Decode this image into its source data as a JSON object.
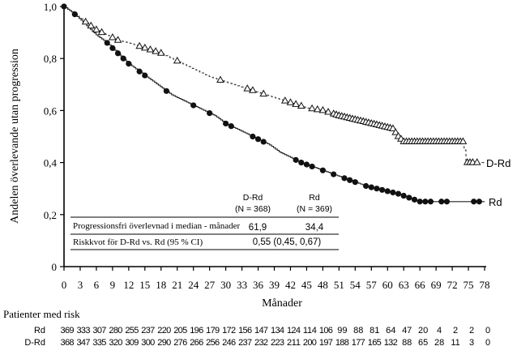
{
  "chart_data": {
    "type": "line",
    "subtype": "kaplan-meier",
    "ylabel": "Andelen överlevande utan progression",
    "xlabel": "Månader",
    "xlim": [
      0,
      78
    ],
    "ylim": [
      0,
      1.0
    ],
    "x_ticks": [
      0,
      3,
      6,
      9,
      12,
      15,
      18,
      21,
      24,
      27,
      30,
      33,
      36,
      39,
      42,
      45,
      48,
      51,
      54,
      57,
      60,
      63,
      66,
      69,
      72,
      75,
      78
    ],
    "y_ticks": [
      {
        "v": 0,
        "label": "0"
      },
      {
        "v": 0.2,
        "label": "0,2"
      },
      {
        "v": 0.4,
        "label": "0,4"
      },
      {
        "v": 0.6,
        "label": "0,6"
      },
      {
        "v": 0.8,
        "label": "0,8"
      },
      {
        "v": 1.0,
        "label": "1,0"
      }
    ],
    "series": [
      {
        "name": "D-Rd",
        "style": "dashed",
        "marker": "triangle-open",
        "points": [
          [
            0,
            1
          ],
          [
            2,
            0.97
          ],
          [
            4,
            0.94
          ],
          [
            6,
            0.91
          ],
          [
            8,
            0.89
          ],
          [
            10,
            0.87
          ],
          [
            12,
            0.86
          ],
          [
            15,
            0.84
          ],
          [
            18,
            0.82
          ],
          [
            21,
            0.79
          ],
          [
            24,
            0.76
          ],
          [
            27,
            0.73
          ],
          [
            30,
            0.71
          ],
          [
            33,
            0.69
          ],
          [
            36,
            0.67
          ],
          [
            39,
            0.65
          ],
          [
            42,
            0.63
          ],
          [
            45,
            0.61
          ],
          [
            48,
            0.6
          ],
          [
            51,
            0.58
          ],
          [
            54,
            0.565
          ],
          [
            57,
            0.55
          ],
          [
            60,
            0.535
          ],
          [
            61,
            0.53
          ],
          [
            62,
            0.5
          ],
          [
            63,
            0.48
          ],
          [
            74,
            0.48
          ],
          [
            74.5,
            0.4
          ],
          [
            78,
            0.4
          ]
        ],
        "censored": [
          4,
          5,
          6,
          7,
          9,
          10,
          14,
          15,
          16,
          17,
          18,
          21,
          29,
          34,
          35,
          37,
          41,
          42,
          43,
          44,
          46,
          47,
          48,
          49,
          50,
          50.5,
          51,
          51.5,
          52,
          52.5,
          53,
          53.5,
          54,
          54.5,
          55,
          55.5,
          56,
          56.5,
          57,
          57.5,
          58,
          58.5,
          59,
          59.5,
          60,
          60.5,
          61,
          61.5,
          62,
          62.5,
          63,
          63.5,
          64,
          64.5,
          65,
          65.5,
          66,
          66.5,
          67,
          67.5,
          68,
          68.5,
          69,
          69.5,
          70,
          70.5,
          71,
          71.5,
          72,
          72.5,
          73,
          73.5,
          74,
          74.8,
          75.3,
          75.8,
          76.6
        ]
      },
      {
        "name": "Rd",
        "style": "solid",
        "marker": "circle-filled",
        "points": [
          [
            0,
            1
          ],
          [
            2,
            0.97
          ],
          [
            4,
            0.93
          ],
          [
            6,
            0.89
          ],
          [
            8,
            0.86
          ],
          [
            10,
            0.82
          ],
          [
            12,
            0.78
          ],
          [
            14,
            0.75
          ],
          [
            16,
            0.72
          ],
          [
            18,
            0.69
          ],
          [
            20,
            0.66
          ],
          [
            22,
            0.64
          ],
          [
            24,
            0.62
          ],
          [
            26,
            0.6
          ],
          [
            28,
            0.58
          ],
          [
            30,
            0.55
          ],
          [
            32,
            0.53
          ],
          [
            34,
            0.51
          ],
          [
            36,
            0.49
          ],
          [
            38,
            0.47
          ],
          [
            40,
            0.44
          ],
          [
            42,
            0.42
          ],
          [
            44,
            0.4
          ],
          [
            46,
            0.385
          ],
          [
            48,
            0.37
          ],
          [
            50,
            0.355
          ],
          [
            52,
            0.34
          ],
          [
            54,
            0.325
          ],
          [
            56,
            0.31
          ],
          [
            58,
            0.3
          ],
          [
            60,
            0.29
          ],
          [
            62,
            0.28
          ],
          [
            64,
            0.265
          ],
          [
            66,
            0.25
          ],
          [
            78,
            0.25
          ]
        ],
        "censored": [
          0,
          2,
          8,
          9,
          10,
          11,
          12,
          14,
          15,
          19,
          24,
          27,
          30,
          31,
          35,
          36,
          37,
          43,
          44,
          45,
          46,
          48,
          50,
          52,
          53,
          54,
          56,
          57,
          58,
          59,
          60,
          61,
          62,
          63,
          64,
          65,
          66,
          67,
          68,
          70,
          71,
          76,
          77
        ]
      }
    ],
    "summary_table": {
      "col_headers": [
        {
          "name": "D-Rd",
          "n": "(N = 368)"
        },
        {
          "name": "Rd",
          "n": "(N = 369)"
        }
      ],
      "rows": [
        {
          "label": "Progressionsfri överlevnad i median - månader",
          "values": [
            "61,9",
            "34,4"
          ]
        },
        {
          "label": "Riskkvot för D-Rd vs. Rd (95 % CI)",
          "value": "0,55 (0,45, 0,67)"
        }
      ]
    },
    "risk_table": {
      "title": "Patienter med risk",
      "rows": [
        {
          "name": "Rd",
          "values": [
            "369",
            "333",
            "307",
            "280",
            "255",
            "237",
            "220",
            "205",
            "196",
            "179",
            "172",
            "156",
            "147",
            "134",
            "124",
            "114",
            "106",
            "99",
            "88",
            "81",
            "64",
            "47",
            "20",
            "4",
            "2",
            "2",
            "0"
          ]
        },
        {
          "name": "D-Rd",
          "values": [
            "368",
            "347",
            "335",
            "320",
            "309",
            "300",
            "290",
            "276",
            "266",
            "256",
            "246",
            "237",
            "232",
            "223",
            "211",
            "200",
            "197",
            "188",
            "177",
            "165",
            "132",
            "88",
            "65",
            "28",
            "11",
            "3",
            "0"
          ]
        }
      ]
    }
  }
}
